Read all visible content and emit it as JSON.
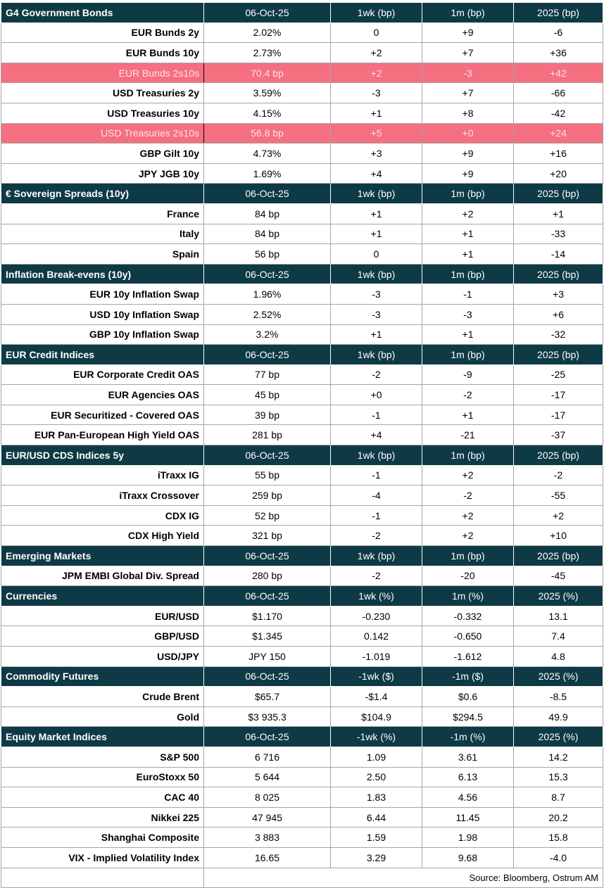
{
  "sections": [
    {
      "title": "G4 Government Bonds",
      "columns": [
        "06-Oct-25",
        "1wk (bp)",
        "1m (bp)",
        "2025 (bp)"
      ],
      "rows": [
        {
          "label": "EUR Bunds 2y",
          "cells": [
            "2.02%",
            "0",
            "+9",
            "-6"
          ]
        },
        {
          "label": "EUR Bunds 10y",
          "cells": [
            "2.73%",
            "+2",
            "+7",
            "+36"
          ]
        },
        {
          "label": "EUR Bunds 2s10s",
          "cells": [
            "70.4 bp",
            "+2",
            "-3",
            "+42"
          ],
          "highlight": true
        },
        {
          "label": "USD Treasuries 2y",
          "cells": [
            "3.59%",
            "-3",
            "+7",
            "-66"
          ]
        },
        {
          "label": "USD Treasuries 10y",
          "cells": [
            "4.15%",
            "+1",
            "+8",
            "-42"
          ]
        },
        {
          "label": "USD Treasuries 2s10s",
          "cells": [
            "56.8 bp",
            "+5",
            "+0",
            "+24"
          ],
          "highlight": true
        },
        {
          "label": "GBP Gilt 10y",
          "cells": [
            "4.73%",
            "+3",
            "+9",
            "+16"
          ]
        },
        {
          "label": "JPY JGB  10y",
          "cells": [
            "1.69%",
            "+4",
            "+9",
            "+20"
          ]
        }
      ]
    },
    {
      "title": "€ Sovereign Spreads (10y)",
      "columns": [
        "06-Oct-25",
        "1wk (bp)",
        "1m (bp)",
        "2025 (bp)"
      ],
      "rows": [
        {
          "label": "France",
          "cells": [
            "84 bp",
            "+1",
            "+2",
            "+1"
          ]
        },
        {
          "label": "Italy",
          "cells": [
            "84 bp",
            "+1",
            "+1",
            "-33"
          ]
        },
        {
          "label": "Spain",
          "cells": [
            "56 bp",
            "0",
            "+1",
            "-14"
          ]
        }
      ]
    },
    {
      "title": "Inflation Break-evens (10y)",
      "columns": [
        "06-Oct-25",
        "1wk (bp)",
        "1m (bp)",
        "2025 (bp)"
      ],
      "rows": [
        {
          "label": "EUR 10y Inflation Swap",
          "cells": [
            "1.96%",
            "-3",
            "-1",
            "+3"
          ]
        },
        {
          "label": "USD 10y Inflation Swap",
          "cells": [
            "2.52%",
            "-3",
            "-3",
            "+6"
          ]
        },
        {
          "label": "GBP 10y Inflation Swap",
          "cells": [
            "3.2%",
            "+1",
            "+1",
            "-32"
          ]
        }
      ]
    },
    {
      "title": "EUR Credit Indices",
      "columns": [
        "06-Oct-25",
        "1wk (bp)",
        "1m (bp)",
        "2025 (bp)"
      ],
      "rows": [
        {
          "label": "EUR Corporate Credit OAS",
          "cells": [
            "77 bp",
            "-2",
            "-9",
            "-25"
          ]
        },
        {
          "label": "EUR Agencies OAS",
          "cells": [
            "45 bp",
            "+0",
            "-2",
            "-17"
          ]
        },
        {
          "label": "EUR Securitized - Covered OAS",
          "cells": [
            "39 bp",
            "-1",
            "+1",
            "-17"
          ]
        },
        {
          "label": "EUR Pan-European High Yield OAS",
          "cells": [
            "281 bp",
            "+4",
            "-21",
            "-37"
          ]
        }
      ]
    },
    {
      "title": "EUR/USD CDS Indices 5y",
      "columns": [
        "06-Oct-25",
        "1wk (bp)",
        "1m (bp)",
        "2025 (bp)"
      ],
      "rows": [
        {
          "label": "iTraxx IG",
          "cells": [
            "55 bp",
            "-1",
            "+2",
            "-2"
          ]
        },
        {
          "label": "iTraxx Crossover",
          "cells": [
            "259 bp",
            "-4",
            "-2",
            "-55"
          ]
        },
        {
          "label": "CDX IG",
          "cells": [
            "52 bp",
            "-1",
            "+2",
            "+2"
          ]
        },
        {
          "label": "CDX High Yield",
          "cells": [
            "321 bp",
            "-2",
            "+2",
            "+10"
          ]
        }
      ]
    },
    {
      "title": "Emerging Markets",
      "columns": [
        "06-Oct-25",
        "1wk (bp)",
        "1m (bp)",
        "2025 (bp)"
      ],
      "rows": [
        {
          "label": "JPM EMBI Global Div. Spread",
          "cells": [
            "280 bp",
            "-2",
            "-20",
            "-45"
          ]
        }
      ]
    },
    {
      "title": "Currencies",
      "columns": [
        "06-Oct-25",
        "1wk (%)",
        "1m (%)",
        "2025 (%)"
      ],
      "rows": [
        {
          "label": "EUR/USD",
          "cells": [
            "$1.170",
            "-0.230",
            "-0.332",
            "13.1"
          ]
        },
        {
          "label": "GBP/USD",
          "cells": [
            "$1.345",
            "0.142",
            "-0.650",
            "7.4"
          ]
        },
        {
          "label": "USD/JPY",
          "cells": [
            "JPY 150",
            "-1.019",
            "-1.612",
            "4.8"
          ]
        }
      ]
    },
    {
      "title": "Commodity Futures",
      "columns": [
        "06-Oct-25",
        "-1wk ($)",
        "-1m ($)",
        "2025 (%)"
      ],
      "rows": [
        {
          "label": "Crude Brent",
          "cells": [
            "$65.7",
            "-$1.4",
            "$0.6",
            "-8.5"
          ]
        },
        {
          "label": "Gold",
          "cells": [
            "$3 935.3",
            "$104.9",
            "$294.5",
            "49.9"
          ]
        }
      ]
    },
    {
      "title": "Equity Market Indices",
      "columns": [
        "06-Oct-25",
        "-1wk (%)",
        "-1m (%)",
        "2025 (%)"
      ],
      "rows": [
        {
          "label": "S&P 500",
          "cells": [
            "6 716",
            "1.09",
            "3.61",
            "14.2"
          ]
        },
        {
          "label": "EuroStoxx 50",
          "cells": [
            "5 644",
            "2.50",
            "6.13",
            "15.3"
          ]
        },
        {
          "label": "CAC 40",
          "cells": [
            "8 025",
            "1.83",
            "4.56",
            "8.7"
          ]
        },
        {
          "label": "Nikkei 225",
          "cells": [
            "47 945",
            "6.44",
            "11.45",
            "20.2"
          ]
        },
        {
          "label": "Shanghai Composite",
          "cells": [
            "3 883",
            "1.59",
            "1.98",
            "15.8"
          ]
        },
        {
          "label": "VIX - Implied Volatility Index",
          "cells": [
            "16.65",
            "3.29",
            "9.68",
            "-4.0"
          ]
        }
      ]
    }
  ],
  "source": "Source: Bloomberg, Ostrum AM"
}
